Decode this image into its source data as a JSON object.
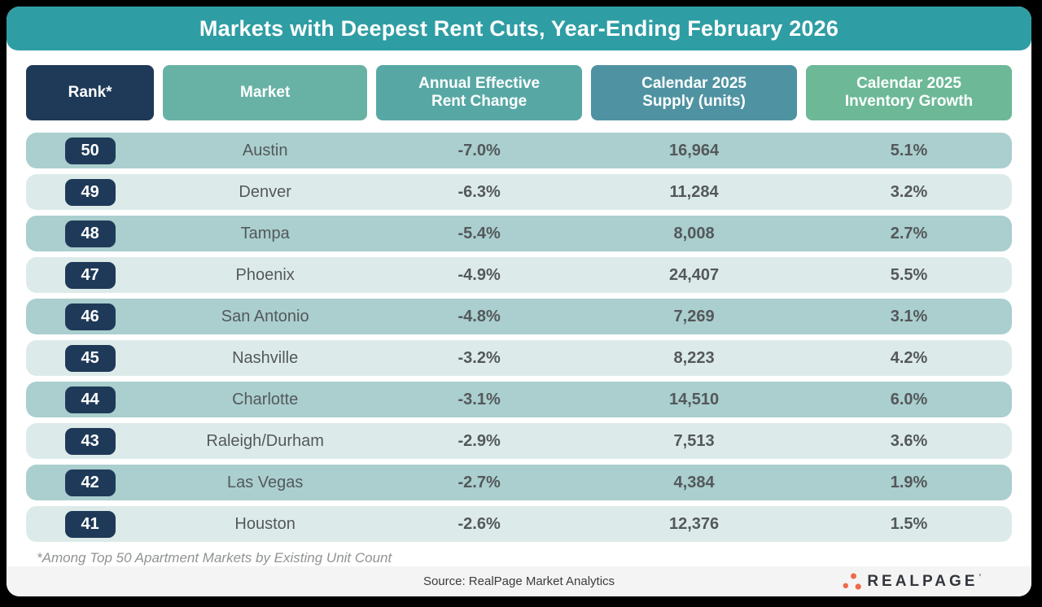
{
  "title": "Markets with Deepest Rent Cuts, Year-Ending February 2026",
  "columns": [
    {
      "label": "Rank*",
      "color": "#1f3a58"
    },
    {
      "label": "Market",
      "color": "#67b2a5"
    },
    {
      "label": "Annual Effective Rent Change",
      "color": "#57a8a5"
    },
    {
      "label": "Calendar 2025 Supply (units)",
      "color": "#4f93a2"
    },
    {
      "label": "Calendar 2025 Inventory Growth",
      "color": "#6cb897"
    }
  ],
  "rows": [
    {
      "rank": "50",
      "market": "Austin",
      "rent_change": "-7.0%",
      "supply": "16,964",
      "inventory_growth": "5.1%"
    },
    {
      "rank": "49",
      "market": "Denver",
      "rent_change": "-6.3%",
      "supply": "11,284",
      "inventory_growth": "3.2%"
    },
    {
      "rank": "48",
      "market": "Tampa",
      "rent_change": "-5.4%",
      "supply": "8,008",
      "inventory_growth": "2.7%"
    },
    {
      "rank": "47",
      "market": "Phoenix",
      "rent_change": "-4.9%",
      "supply": "24,407",
      "inventory_growth": "5.5%"
    },
    {
      "rank": "46",
      "market": "San Antonio",
      "rent_change": "-4.8%",
      "supply": "7,269",
      "inventory_growth": "3.1%"
    },
    {
      "rank": "45",
      "market": "Nashville",
      "rent_change": "-3.2%",
      "supply": "8,223",
      "inventory_growth": "4.2%"
    },
    {
      "rank": "44",
      "market": "Charlotte",
      "rent_change": "-3.1%",
      "supply": "14,510",
      "inventory_growth": "6.0%"
    },
    {
      "rank": "43",
      "market": "Raleigh/Durham",
      "rent_change": "-2.9%",
      "supply": "7,513",
      "inventory_growth": "3.6%"
    },
    {
      "rank": "42",
      "market": "Las Vegas",
      "rent_change": "-2.7%",
      "supply": "4,384",
      "inventory_growth": "1.9%"
    },
    {
      "rank": "41",
      "market": "Houston",
      "rent_change": "-2.6%",
      "supply": "12,376",
      "inventory_growth": "1.5%"
    }
  ],
  "footnote": "*Among Top 50 Apartment Markets by Existing Unit Count",
  "source": "Source: RealPage Market Analytics",
  "logo": {
    "brand": "REALPAGE",
    "tm": "’",
    "dots_color": "#ec6a4a"
  },
  "theme": {
    "title_bar": "#2f9da4",
    "row_dark": "#aacfce",
    "row_light": "#dcebe9",
    "rank_badge": "#1f3a58",
    "background": "#000000"
  },
  "chart_data": {
    "type": "table",
    "title": "Markets with Deepest Rent Cuts, Year-Ending February 2026",
    "columns": [
      "Rank*",
      "Market",
      "Annual Effective Rent Change",
      "Calendar 2025 Supply (units)",
      "Calendar 2025 Inventory Growth"
    ],
    "rows": [
      [
        50,
        "Austin",
        -7.0,
        16964,
        5.1
      ],
      [
        49,
        "Denver",
        -6.3,
        11284,
        3.2
      ],
      [
        48,
        "Tampa",
        -5.4,
        8008,
        2.7
      ],
      [
        47,
        "Phoenix",
        -4.9,
        24407,
        5.5
      ],
      [
        46,
        "San Antonio",
        -4.8,
        7269,
        3.1
      ],
      [
        45,
        "Nashville",
        -3.2,
        8223,
        4.2
      ],
      [
        44,
        "Charlotte",
        -3.1,
        14510,
        6.0
      ],
      [
        43,
        "Raleigh/Durham",
        -2.9,
        7513,
        3.6
      ],
      [
        42,
        "Las Vegas",
        -2.7,
        4384,
        1.9
      ],
      [
        41,
        "Houston",
        -2.6,
        12376,
        1.5
      ]
    ],
    "footnote": "*Among Top 50 Apartment Markets by Existing Unit Count",
    "source": "Source: RealPage Market Analytics"
  }
}
